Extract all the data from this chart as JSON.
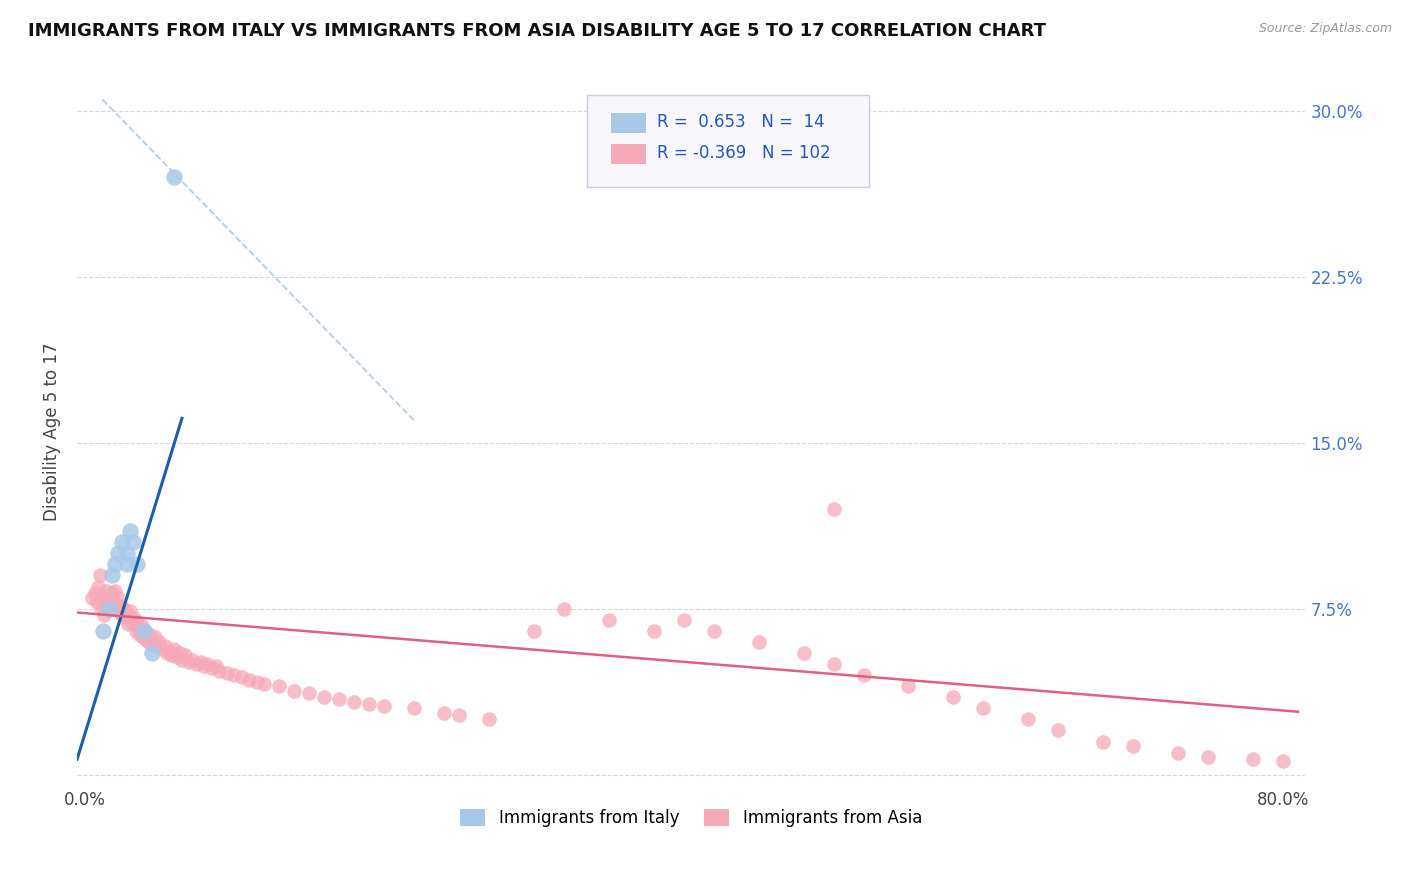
{
  "title": "IMMIGRANTS FROM ITALY VS IMMIGRANTS FROM ASIA DISABILITY AGE 5 TO 17 CORRELATION CHART",
  "source": "Source: ZipAtlas.com",
  "ylabel": "Disability Age 5 to 17",
  "xlim": [
    -0.005,
    0.815
  ],
  "ylim": [
    -0.005,
    0.315
  ],
  "italy_R": 0.653,
  "italy_N": 14,
  "asia_R": -0.369,
  "asia_N": 102,
  "italy_color": "#a8c8e8",
  "asia_color": "#f5a8b8",
  "italy_line_color": "#1a5fa8",
  "asia_line_color": "#e06080",
  "dashed_line_color": "#a8c8e8",
  "background_color": "#ffffff",
  "grid_color": "#d8d8d8",
  "legend_box_color": "#e8e8f0",
  "italy_scatter_x": [
    0.012,
    0.016,
    0.018,
    0.02,
    0.022,
    0.025,
    0.028,
    0.028,
    0.03,
    0.032,
    0.035,
    0.04,
    0.045,
    0.06
  ],
  "italy_scatter_y": [
    0.065,
    0.075,
    0.09,
    0.095,
    0.1,
    0.105,
    0.1,
    0.095,
    0.11,
    0.105,
    0.095,
    0.065,
    0.055,
    0.27
  ],
  "asia_scatter_x": [
    0.005,
    0.007,
    0.008,
    0.009,
    0.01,
    0.011,
    0.012,
    0.013,
    0.014,
    0.015,
    0.016,
    0.017,
    0.018,
    0.019,
    0.02,
    0.021,
    0.022,
    0.023,
    0.024,
    0.025,
    0.026,
    0.027,
    0.028,
    0.029,
    0.03,
    0.031,
    0.032,
    0.033,
    0.034,
    0.035,
    0.036,
    0.037,
    0.038,
    0.039,
    0.04,
    0.041,
    0.042,
    0.043,
    0.044,
    0.045,
    0.047,
    0.048,
    0.05,
    0.052,
    0.054,
    0.055,
    0.057,
    0.058,
    0.06,
    0.062,
    0.064,
    0.065,
    0.067,
    0.07,
    0.072,
    0.075,
    0.078,
    0.08,
    0.082,
    0.085,
    0.088,
    0.09,
    0.095,
    0.1,
    0.105,
    0.11,
    0.115,
    0.12,
    0.13,
    0.14,
    0.15,
    0.16,
    0.17,
    0.18,
    0.19,
    0.2,
    0.22,
    0.24,
    0.25,
    0.27,
    0.3,
    0.32,
    0.35,
    0.38,
    0.4,
    0.42,
    0.45,
    0.48,
    0.5,
    0.52,
    0.55,
    0.58,
    0.6,
    0.63,
    0.65,
    0.68,
    0.7,
    0.73,
    0.75,
    0.78,
    0.8,
    0.5
  ],
  "asia_scatter_y": [
    0.08,
    0.082,
    0.078,
    0.085,
    0.09,
    0.075,
    0.08,
    0.072,
    0.083,
    0.078,
    0.08,
    0.076,
    0.082,
    0.079,
    0.083,
    0.077,
    0.08,
    0.074,
    0.076,
    0.072,
    0.075,
    0.071,
    0.073,
    0.068,
    0.074,
    0.07,
    0.068,
    0.071,
    0.065,
    0.069,
    0.066,
    0.063,
    0.067,
    0.062,
    0.065,
    0.061,
    0.064,
    0.06,
    0.063,
    0.059,
    0.062,
    0.058,
    0.06,
    0.057,
    0.058,
    0.055,
    0.056,
    0.054,
    0.057,
    0.053,
    0.055,
    0.052,
    0.054,
    0.051,
    0.052,
    0.05,
    0.051,
    0.049,
    0.05,
    0.048,
    0.049,
    0.047,
    0.046,
    0.045,
    0.044,
    0.043,
    0.042,
    0.041,
    0.04,
    0.038,
    0.037,
    0.035,
    0.034,
    0.033,
    0.032,
    0.031,
    0.03,
    0.028,
    0.027,
    0.025,
    0.065,
    0.075,
    0.07,
    0.065,
    0.07,
    0.065,
    0.06,
    0.055,
    0.05,
    0.045,
    0.04,
    0.035,
    0.03,
    0.025,
    0.02,
    0.015,
    0.013,
    0.01,
    0.008,
    0.007,
    0.006,
    0.12
  ],
  "italy_line_x": [
    -0.005,
    0.065
  ],
  "italy_line_y_intercept": 0.018,
  "italy_line_slope": 2.2,
  "dashed_line_x": [
    0.012,
    0.22
  ],
  "dashed_line_y_start": 0.305,
  "dashed_line_y_end": 0.16,
  "asia_line_x": [
    -0.01,
    0.81
  ],
  "asia_line_y_intercept": 0.073,
  "asia_line_slope": -0.055
}
